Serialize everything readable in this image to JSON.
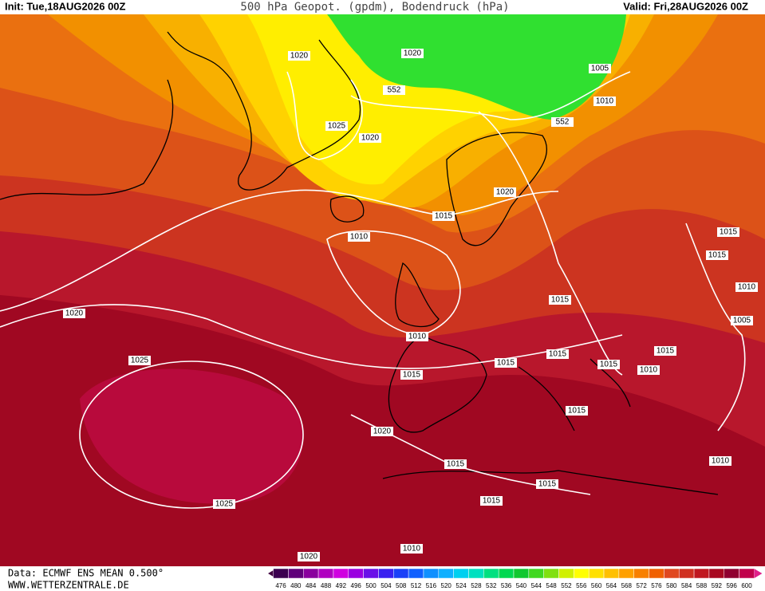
{
  "header": {
    "init": "Init: Tue,18AUG2026 00Z",
    "title": "500 hPa Geopot. (gpdm), Bodendruck (hPa)",
    "valid": "Valid: Fri,28AUG2026 00Z"
  },
  "contour_labels": [
    "1020",
    "1020",
    "552",
    "1005",
    "1010",
    "552",
    "1025",
    "1020",
    "1020",
    "1015",
    "1010",
    "1015",
    "1015",
    "1010",
    "1015",
    "1020",
    "1005",
    "1010",
    "1015",
    "1015",
    "1015",
    "1025",
    "1015",
    "1010",
    "1015",
    "1015",
    "1020",
    "1010",
    "1015",
    "1015",
    "1015",
    "1025",
    "1010",
    "1020"
  ],
  "footer": {
    "data": "Data: ECMWF ENS MEAN 0.500°",
    "site": "WWW.WETTERZENTRALE.DE"
  },
  "legend": {
    "labels": [
      476,
      480,
      484,
      488,
      492,
      496,
      500,
      504,
      508,
      512,
      516,
      520,
      524,
      528,
      532,
      536,
      540,
      544,
      548,
      552,
      556,
      560,
      564,
      568,
      572,
      576,
      580,
      584,
      588,
      592,
      596,
      600
    ]
  }
}
